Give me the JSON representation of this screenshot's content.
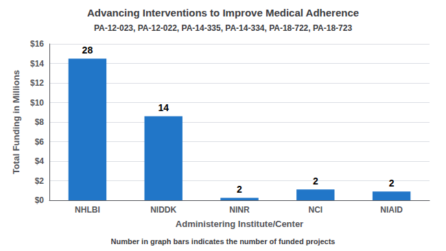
{
  "chart_data": {
    "type": "bar",
    "title": "Advancing Interventions to Improve Medical Adherence",
    "subtitle": "PA-12-023, PA-12-022, PA-14-335, PA-14-334, PA-18-722, PA-18-723",
    "xlabel": "Administering Institute/Center",
    "ylabel": "Total Funding in Millions",
    "annotations": [
      "Number in graph bars indicates the number of funded projects"
    ],
    "categories": [
      "NHLBI",
      "NIDDK",
      "NINR",
      "NCI",
      "NIAID"
    ],
    "values": [
      14.5,
      8.6,
      0.25,
      1.1,
      0.9
    ],
    "project_counts": [
      28,
      14,
      2,
      2,
      2
    ],
    "color": "#2176C8",
    "ylim": [
      0,
      16
    ],
    "yticks": [
      {
        "value": 0,
        "label": "$0"
      },
      {
        "value": 2,
        "label": "$2"
      },
      {
        "value": 4,
        "label": "$4"
      },
      {
        "value": 6,
        "label": "$6"
      },
      {
        "value": 8,
        "label": "$8"
      },
      {
        "value": 10,
        "label": "$10"
      },
      {
        "value": 12,
        "label": "$12"
      },
      {
        "value": 14,
        "label": "$14"
      },
      {
        "value": 16,
        "label": "$16"
      }
    ],
    "grid": true
  }
}
